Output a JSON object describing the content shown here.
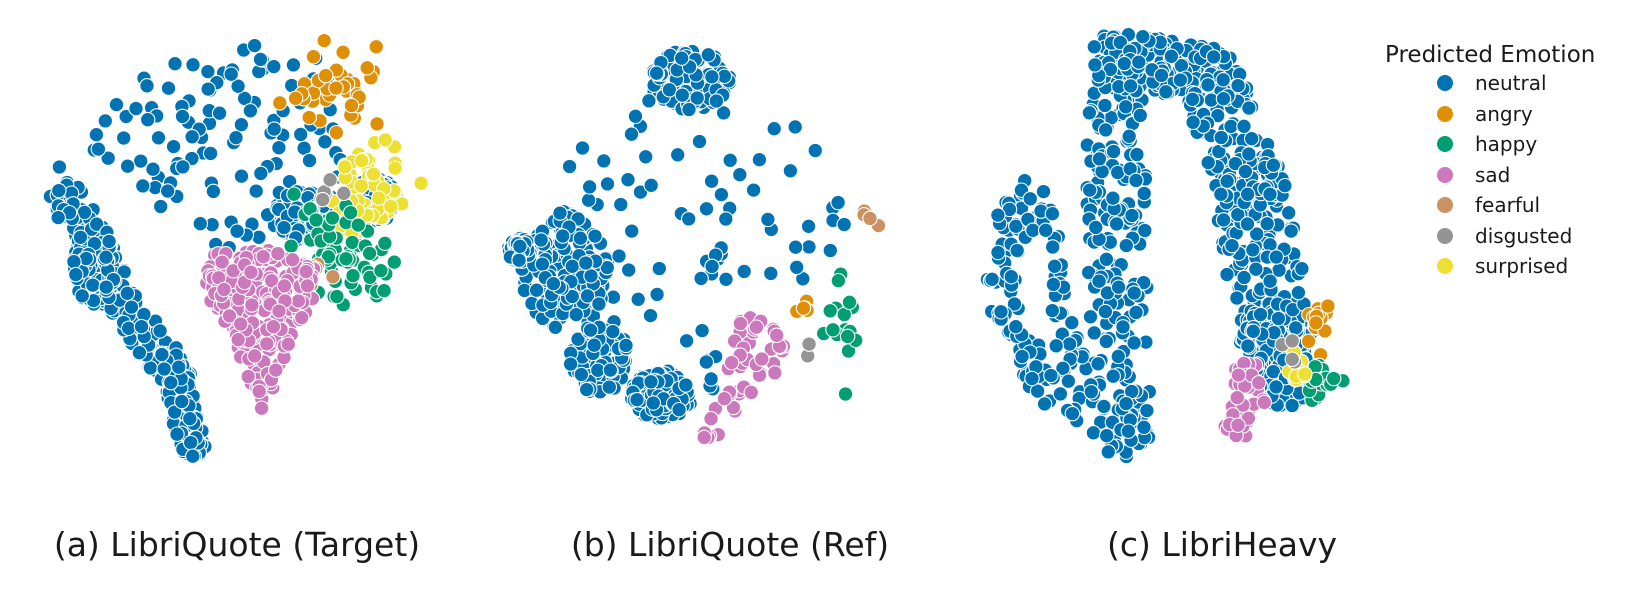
{
  "chart_data": [
    {
      "type": "scatter",
      "title": "(a) LibriQuote (Target)",
      "description_counts": {
        "neutral": 880,
        "angry": 40,
        "happy": 70,
        "sad": 260,
        "fearful": 12,
        "disgusted": 7,
        "surprised": 55
      },
      "xlabel": "",
      "ylabel": "",
      "grid": false,
      "axes_visible": false
    },
    {
      "type": "scatter",
      "title": "(b) LibriQuote (Ref)",
      "description_counts": {
        "neutral": 760,
        "angry": 5,
        "happy": 16,
        "sad": 55,
        "fearful": 4,
        "disgusted": 2,
        "surprised": 0
      },
      "xlabel": "",
      "ylabel": "",
      "grid": false,
      "axes_visible": false
    },
    {
      "type": "scatter",
      "title": "(c) LibriHeavy",
      "description_counts": {
        "neutral": 1000,
        "angry": 16,
        "happy": 18,
        "sad": 38,
        "fearful": 1,
        "disgusted": 4,
        "surprised": 10
      },
      "xlabel": "",
      "ylabel": "",
      "grid": false,
      "axes_visible": false
    }
  ],
  "legend": {
    "title": "Predicted Emotion",
    "placement": "top-right",
    "items": [
      {
        "label": "neutral",
        "color": "#0173b2"
      },
      {
        "label": "angry",
        "color": "#de8f05"
      },
      {
        "label": "happy",
        "color": "#029e73"
      },
      {
        "label": "sad",
        "color": "#cc78bc"
      },
      {
        "label": "fearful",
        "color": "#ca9161"
      },
      {
        "label": "disgusted",
        "color": "#949494"
      },
      {
        "label": "surprised",
        "color": "#ece133"
      }
    ]
  }
}
